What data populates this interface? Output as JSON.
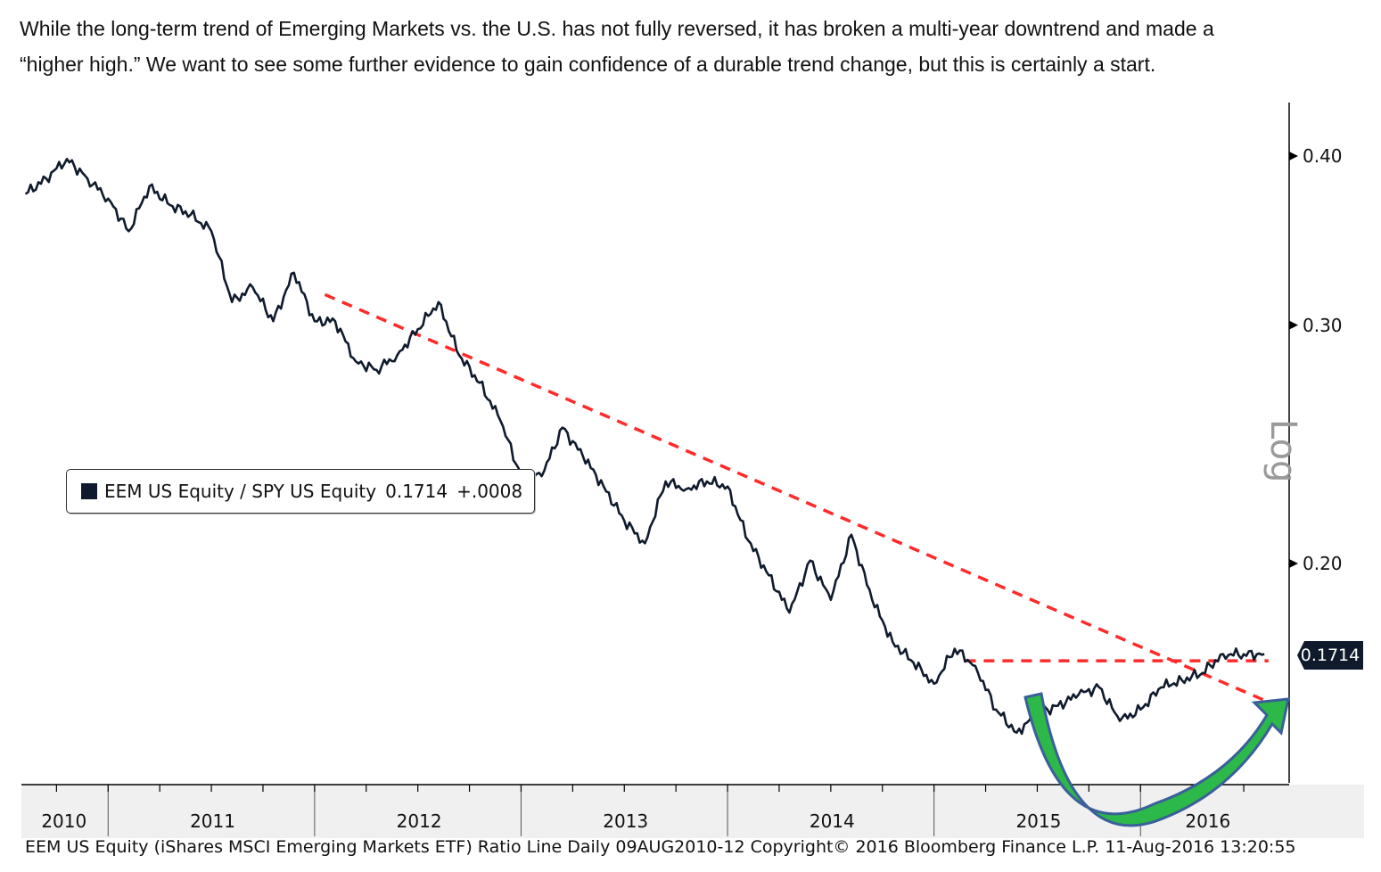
{
  "caption": {
    "line1": "While the long-term trend of Emerging Markets vs. the U.S. has not fully reversed, it has broken a multi-year downtrend and made a",
    "line2": "“higher high.” We want to see some further evidence to gain confidence of a durable trend change, but this is certainly a start."
  },
  "legend": {
    "label": "EEM US Equity / SPY US Equity",
    "value": "0.1714",
    "change": "+.0008"
  },
  "last_value_tag": "0.1714",
  "axis_scale_label": "Log",
  "footer": "EEM US Equity (iShares MSCI Emerging Markets ETF) Ratio Line  Daily 09AUG2010-12  Copyright© 2016 Bloomberg Finance L.P.  11-Aug-2016 13:20:55",
  "colors": {
    "line": "#0f1b2d",
    "trendline": "#ff2a2a",
    "arrow_fill": "#2db84a",
    "arrow_outline": "#3a5f9a"
  },
  "chart_data": {
    "type": "line",
    "title": "",
    "ylabel": "",
    "scale": "log",
    "ylim": [
      0.135,
      0.44
    ],
    "yticks": [
      "0.40",
      "0.30",
      "0.20"
    ],
    "ytick_values": [
      0.4,
      0.3,
      0.2
    ],
    "xtick_labels": [
      "2010",
      "2011",
      "2012",
      "2013",
      "2014",
      "2015",
      "2016"
    ],
    "grid": false,
    "legend_position": "middle-left",
    "series": [
      {
        "name": "EEM US Equity / SPY US Equity",
        "x": [
          2010.6,
          2010.7,
          2010.8,
          2010.9,
          2011.0,
          2011.1,
          2011.2,
          2011.3,
          2011.4,
          2011.5,
          2011.6,
          2011.7,
          2011.8,
          2011.9,
          2012.0,
          2012.1,
          2012.2,
          2012.3,
          2012.4,
          2012.5,
          2012.6,
          2012.7,
          2012.8,
          2012.9,
          2013.0,
          2013.1,
          2013.2,
          2013.3,
          2013.4,
          2013.5,
          2013.6,
          2013.7,
          2013.8,
          2013.9,
          2014.0,
          2014.1,
          2014.2,
          2014.3,
          2014.4,
          2014.5,
          2014.6,
          2014.7,
          2014.8,
          2014.9,
          2015.0,
          2015.1,
          2015.2,
          2015.3,
          2015.4,
          2015.5,
          2015.6,
          2015.7,
          2015.8,
          2015.9,
          2016.0,
          2016.1,
          2016.2,
          2016.3,
          2016.4,
          2016.5,
          2016.6
        ],
        "values": [
          0.375,
          0.385,
          0.398,
          0.385,
          0.372,
          0.352,
          0.38,
          0.368,
          0.362,
          0.352,
          0.312,
          0.32,
          0.302,
          0.328,
          0.302,
          0.302,
          0.282,
          0.278,
          0.285,
          0.298,
          0.312,
          0.285,
          0.272,
          0.255,
          0.232,
          0.232,
          0.252,
          0.24,
          0.228,
          0.215,
          0.207,
          0.23,
          0.227,
          0.23,
          0.228,
          0.208,
          0.196,
          0.184,
          0.201,
          0.188,
          0.21,
          0.188,
          0.175,
          0.169,
          0.163,
          0.173,
          0.168,
          0.156,
          0.15,
          0.155,
          0.157,
          0.16,
          0.162,
          0.153,
          0.156,
          0.162,
          0.164,
          0.166,
          0.1714,
          0.1714,
          0.1714
        ]
      }
    ],
    "annotations": [
      {
        "type": "dashed-trendline",
        "from": [
          2012.05,
          0.316
        ],
        "to": [
          2016.62,
          0.158
        ]
      },
      {
        "type": "dashed-horizontal",
        "from": [
          2015.15,
          0.1695
        ],
        "to": [
          2016.62,
          0.1695
        ]
      },
      {
        "type": "curved-arrow",
        "from": [
          2015.0,
          0.158
        ],
        "to": [
          2016.62,
          0.156
        ]
      }
    ]
  }
}
